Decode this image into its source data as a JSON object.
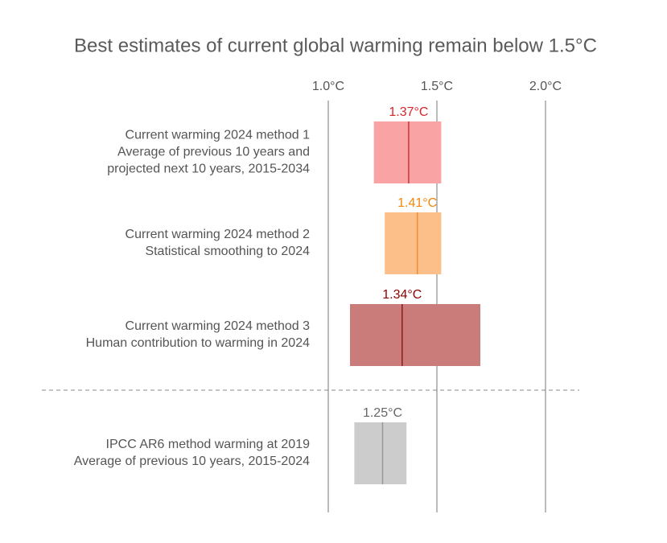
{
  "chart_data": {
    "type": "range",
    "title": "Best estimates of current global warming remain below 1.5°C",
    "xlim": [
      1.0,
      2.0
    ],
    "xticks": [
      {
        "value": 1.0,
        "label": "1.0°C"
      },
      {
        "value": 1.5,
        "label": "1.5°C"
      },
      {
        "value": 2.0,
        "label": "2.0°C"
      }
    ],
    "grid": true,
    "bars": [
      {
        "label": [
          "Current warming 2024 method 1",
          "Average of previous 10 years and",
          "projected next 10 years, 2015-2034"
        ],
        "low": 1.21,
        "high": 1.52,
        "value": 1.37,
        "value_label": "1.37°C",
        "color": "#f9a3a4",
        "line_color": "#c8363b",
        "label_color": "#d7262b"
      },
      {
        "label": [
          "Current warming 2024 method 2",
          "Statistical smoothing to 2024"
        ],
        "low": 1.26,
        "high": 1.52,
        "value": 1.41,
        "value_label": "1.41°C",
        "color": "#fdbf89",
        "line_color": "#ee8c3a",
        "label_color": "#f0860d"
      },
      {
        "label": [
          "Current warming 2024 method 3",
          "Human contribution to warming in 2024"
        ],
        "low": 1.1,
        "high": 1.7,
        "value": 1.34,
        "value_label": "1.34°C",
        "color": "#c97c79",
        "line_color": "#8e1c1c",
        "label_color": "#8b0000"
      },
      {
        "label": [
          "IPCC AR6 method warming at 2019",
          "Average of previous 10 years, 2015-2024"
        ],
        "low": 1.12,
        "high": 1.36,
        "value": 1.25,
        "value_label": "1.25°C",
        "color": "#cccccc",
        "line_color": "#999999",
        "label_color": "#666666"
      }
    ]
  }
}
